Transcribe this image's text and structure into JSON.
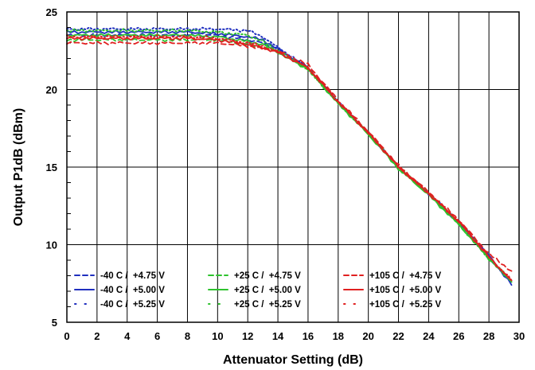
{
  "chart_data": {
    "type": "line",
    "title": "",
    "xlabel": "Attenuator Setting (dB)",
    "ylabel": "Output P1dB (dBm)",
    "xlim": [
      0,
      30
    ],
    "ylim": [
      5,
      25
    ],
    "x_ticks": [
      0,
      2,
      4,
      6,
      8,
      10,
      12,
      14,
      16,
      18,
      20,
      22,
      24,
      26,
      28,
      30
    ],
    "y_ticks": [
      5,
      10,
      15,
      20,
      25
    ],
    "grid": true,
    "legend_position": "bottom-left",
    "x": [
      0,
      2,
      4,
      6,
      8,
      10,
      12,
      13,
      14,
      16,
      18,
      20,
      22,
      24,
      26,
      28,
      29.5
    ],
    "series": [
      {
        "name": "-40 C /  +4.75 V",
        "color": "#1f2fbf",
        "dash": "dashed",
        "values": [
          23.5,
          23.5,
          23.5,
          23.5,
          23.5,
          23.5,
          23.2,
          23.0,
          22.6,
          21.4,
          19.2,
          17.2,
          15.0,
          13.3,
          11.4,
          9.2,
          7.6
        ]
      },
      {
        "name": "-40 C /  +5.00 V",
        "color": "#1f2fbf",
        "dash": "solid",
        "values": [
          23.7,
          23.7,
          23.7,
          23.7,
          23.7,
          23.6,
          23.4,
          23.2,
          22.6,
          21.4,
          19.2,
          17.2,
          15.0,
          13.3,
          11.5,
          9.3,
          7.4
        ]
      },
      {
        "name": "-40 C /  +5.25 V",
        "color": "#1f2fbf",
        "dash": "dotted",
        "values": [
          23.9,
          23.9,
          23.9,
          23.9,
          23.9,
          23.9,
          23.8,
          23.4,
          22.7,
          21.4,
          19.2,
          17.2,
          15.0,
          13.3,
          11.4,
          9.2,
          7.6
        ]
      },
      {
        "name": "+25 C /  +4.75 V",
        "color": "#2ec22e",
        "dash": "dashed",
        "values": [
          23.2,
          23.2,
          23.2,
          23.2,
          23.2,
          23.2,
          22.9,
          22.7,
          22.4,
          21.3,
          19.1,
          17.2,
          14.9,
          13.3,
          11.3,
          9.1,
          7.7
        ]
      },
      {
        "name": "+25 C /  +5.00 V",
        "color": "#2ec22e",
        "dash": "solid",
        "values": [
          23.5,
          23.5,
          23.5,
          23.5,
          23.5,
          23.4,
          23.1,
          22.9,
          22.4,
          21.3,
          19.1,
          17.1,
          14.9,
          13.2,
          11.3,
          9.1,
          7.6
        ]
      },
      {
        "name": "+25 C /  +5.25 V",
        "color": "#2ec22e",
        "dash": "dotted",
        "values": [
          23.8,
          23.8,
          23.8,
          23.8,
          23.8,
          23.7,
          23.5,
          23.1,
          22.5,
          21.3,
          19.1,
          17.2,
          15.0,
          13.3,
          11.4,
          9.1,
          7.6
        ]
      },
      {
        "name": "+105 C /  +4.75 V",
        "color": "#e02020",
        "dash": "dashed",
        "values": [
          23.0,
          23.0,
          23.0,
          23.0,
          23.0,
          23.0,
          22.8,
          22.6,
          22.5,
          21.6,
          19.3,
          17.3,
          15.1,
          13.4,
          11.6,
          9.4,
          8.3
        ]
      },
      {
        "name": "+105 C /  +5.00 V",
        "color": "#e02020",
        "dash": "solid",
        "values": [
          23.3,
          23.3,
          23.3,
          23.3,
          23.3,
          23.2,
          22.9,
          22.7,
          22.4,
          21.4,
          19.2,
          17.2,
          15.0,
          13.3,
          11.5,
          9.2,
          7.7
        ]
      },
      {
        "name": "+105 C /  +5.25 V",
        "color": "#e02020",
        "dash": "dotted",
        "values": [
          23.4,
          23.4,
          23.4,
          23.4,
          23.4,
          23.3,
          23.0,
          22.8,
          22.4,
          21.4,
          19.2,
          17.2,
          15.0,
          13.3,
          11.5,
          9.2,
          7.7
        ]
      }
    ]
  }
}
